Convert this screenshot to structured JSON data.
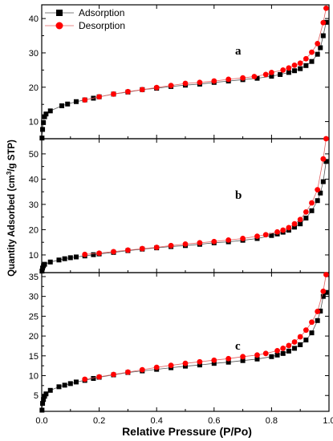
{
  "chart_data": {
    "type": "scatter",
    "xlabel": "Relative Pressure (P/Po)",
    "ylabel": "Quantity Adsorbed (cm3/g STP)",
    "xlim": [
      0.0,
      1.0
    ],
    "x_ticks": [
      "0.0",
      "0.2",
      "0.4",
      "0.6",
      "0.8",
      "1.0"
    ],
    "legend": {
      "placement": "top-left",
      "entries": [
        "Adsorption",
        "Desorption"
      ]
    },
    "colors": {
      "adsorption": "#000000",
      "desorption": "#ff0000",
      "desorption_line": "#e06060"
    },
    "panels": [
      {
        "label": "a",
        "ylim": [
          5,
          44
        ],
        "y_ticks": [
          10,
          20,
          30,
          40
        ],
        "series": [
          {
            "name": "Adsorption",
            "marker": "square",
            "x": [
              0.001,
              0.003,
              0.006,
              0.01,
              0.015,
              0.03,
              0.07,
              0.09,
              0.12,
              0.15,
              0.18,
              0.2,
              0.25,
              0.3,
              0.35,
              0.4,
              0.45,
              0.5,
              0.55,
              0.6,
              0.65,
              0.7,
              0.75,
              0.8,
              0.83,
              0.86,
              0.88,
              0.9,
              0.92,
              0.94,
              0.96,
              0.97,
              0.98,
              0.99
            ],
            "y": [
              5.2,
              7.7,
              9.7,
              11.4,
              12.2,
              13.1,
              14.6,
              15.1,
              15.8,
              16.3,
              16.8,
              17.2,
              18.0,
              18.6,
              19.3,
              19.7,
              20.2,
              20.6,
              20.9,
              21.4,
              21.8,
              22.2,
              22.6,
              23.2,
              23.7,
              24.3,
              24.8,
              25.4,
              26.3,
              27.5,
              29.6,
              31.5,
              35.0,
              38.9
            ]
          },
          {
            "name": "Desorption",
            "marker": "circle",
            "x": [
              0.15,
              0.2,
              0.25,
              0.3,
              0.35,
              0.4,
              0.45,
              0.5,
              0.55,
              0.6,
              0.65,
              0.7,
              0.74,
              0.78,
              0.8,
              0.84,
              0.86,
              0.88,
              0.9,
              0.92,
              0.94,
              0.96,
              0.98,
              0.99
            ],
            "y": [
              16.3,
              17.2,
              18.0,
              18.7,
              19.3,
              19.9,
              20.5,
              21.1,
              21.4,
              21.8,
              22.3,
              22.7,
              23.1,
              23.7,
              24.3,
              25.0,
              25.6,
              26.4,
              27.0,
              28.3,
              30.2,
              32.7,
              38.8,
              43.0
            ]
          }
        ]
      },
      {
        "label": "b",
        "ylim": [
          3,
          56
        ],
        "y_ticks": [
          10,
          20,
          30,
          40,
          50
        ],
        "series": [
          {
            "name": "Adsorption",
            "marker": "square",
            "x": [
              0.001,
              0.003,
              0.006,
              0.01,
              0.03,
              0.06,
              0.08,
              0.1,
              0.12,
              0.15,
              0.18,
              0.2,
              0.25,
              0.3,
              0.35,
              0.4,
              0.45,
              0.5,
              0.55,
              0.6,
              0.65,
              0.7,
              0.75,
              0.8,
              0.82,
              0.84,
              0.86,
              0.88,
              0.9,
              0.92,
              0.94,
              0.96,
              0.97,
              0.98,
              0.99
            ],
            "y": [
              3.6,
              4.8,
              5.7,
              6.3,
              7.2,
              8.0,
              8.5,
              8.9,
              9.2,
              9.6,
              10.1,
              10.4,
              11.0,
              11.7,
              12.3,
              12.8,
              13.3,
              13.7,
              14.2,
              14.8,
              15.2,
              15.8,
              16.5,
              17.7,
              18.3,
              19.0,
              19.8,
              21.0,
              22.3,
              24.6,
              27.5,
              31.5,
              34.5,
              39.0,
              47.0
            ]
          },
          {
            "name": "Desorption",
            "marker": "circle",
            "x": [
              0.15,
              0.2,
              0.25,
              0.3,
              0.35,
              0.4,
              0.45,
              0.5,
              0.55,
              0.6,
              0.65,
              0.7,
              0.75,
              0.78,
              0.82,
              0.84,
              0.86,
              0.88,
              0.9,
              0.92,
              0.94,
              0.96,
              0.98,
              0.99
            ],
            "y": [
              10.2,
              10.7,
              11.3,
              11.9,
              12.5,
              13.0,
              13.7,
              14.3,
              14.8,
              15.3,
              15.9,
              16.5,
              17.4,
              18.0,
              19.1,
              19.8,
              20.8,
              22.3,
              24.0,
              27.0,
              30.6,
              35.8,
              48.0,
              56.0
            ]
          }
        ]
      },
      {
        "label": "c",
        "ylim": [
          1,
          36
        ],
        "y_ticks": [
          5,
          10,
          15,
          20,
          25,
          30,
          35
        ],
        "series": [
          {
            "name": "Adsorption",
            "marker": "square",
            "x": [
              0.001,
              0.003,
              0.006,
              0.01,
              0.015,
              0.03,
              0.06,
              0.08,
              0.1,
              0.12,
              0.15,
              0.18,
              0.2,
              0.25,
              0.3,
              0.35,
              0.4,
              0.45,
              0.5,
              0.55,
              0.6,
              0.65,
              0.7,
              0.75,
              0.8,
              0.82,
              0.84,
              0.86,
              0.88,
              0.9,
              0.92,
              0.94,
              0.96,
              0.97,
              0.98,
              0.99
            ],
            "y": [
              1.3,
              3.0,
              4.0,
              4.8,
              5.4,
              6.3,
              7.2,
              7.6,
              8.0,
              8.4,
              8.8,
              9.3,
              9.6,
              10.2,
              10.8,
              11.2,
              11.6,
              12.0,
              12.4,
              12.7,
              13.1,
              13.4,
              13.8,
              14.2,
              14.8,
              15.2,
              15.6,
              16.2,
              16.9,
              17.8,
              19.0,
              20.8,
              23.9,
              26.3,
              30.0,
              31.0
            ]
          },
          {
            "name": "Desorption",
            "marker": "circle",
            "x": [
              0.15,
              0.2,
              0.25,
              0.3,
              0.35,
              0.4,
              0.45,
              0.5,
              0.55,
              0.6,
              0.65,
              0.7,
              0.75,
              0.78,
              0.82,
              0.84,
              0.86,
              0.88,
              0.9,
              0.92,
              0.94,
              0.96,
              0.98,
              0.99
            ],
            "y": [
              9.1,
              9.7,
              10.3,
              10.9,
              11.5,
              12.1,
              12.6,
              13.1,
              13.5,
              13.9,
              14.3,
              14.8,
              15.2,
              15.6,
              16.3,
              16.9,
              17.6,
              18.5,
              19.8,
              21.5,
              23.5,
              26.2,
              31.3,
              35.5
            ]
          }
        ]
      }
    ]
  }
}
